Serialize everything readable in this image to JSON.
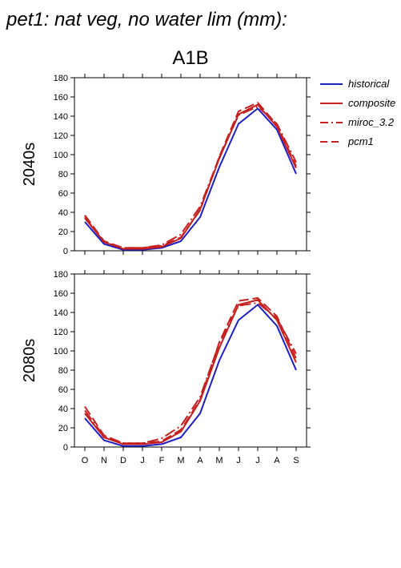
{
  "title": "pet1: nat veg, no water lim (mm):",
  "colors": {
    "historical": "#1f1fbf",
    "composite": "#c42020",
    "miroc_3.2": "#c42020",
    "pcm1": "#c42020"
  },
  "chart_data": [
    {
      "type": "line",
      "title": "A1B",
      "ylabel": "2040s",
      "categories": [
        "O",
        "N",
        "D",
        "J",
        "F",
        "M",
        "A",
        "M",
        "J",
        "J",
        "A",
        "S"
      ],
      "ylim": [
        0,
        180
      ],
      "yticks": [
        0,
        20,
        40,
        60,
        80,
        100,
        120,
        140,
        160,
        180
      ],
      "grid": false,
      "legend_position": "right",
      "series": [
        {
          "name": "historical",
          "style": "solid",
          "values": [
            30,
            7,
            1,
            1,
            3,
            10,
            35,
            87,
            132,
            148,
            126,
            80
          ]
        },
        {
          "name": "composite",
          "style": "solid",
          "values": [
            34,
            9,
            2,
            2,
            4,
            13,
            43,
            96,
            142,
            152,
            129,
            86
          ]
        },
        {
          "name": "miroc_3.2",
          "style": "dashdot",
          "values": [
            35,
            9,
            3,
            3,
            6,
            17,
            46,
            97,
            141,
            150,
            132,
            92
          ]
        },
        {
          "name": "pcm1",
          "style": "longdash",
          "values": [
            37,
            10,
            3,
            3,
            5,
            14,
            42,
            98,
            145,
            154,
            131,
            88
          ]
        }
      ]
    },
    {
      "type": "line",
      "title": "",
      "ylabel": "2080s",
      "categories": [
        "O",
        "N",
        "D",
        "J",
        "F",
        "M",
        "A",
        "M",
        "J",
        "J",
        "A",
        "S"
      ],
      "ylim": [
        0,
        180
      ],
      "yticks": [
        0,
        20,
        40,
        60,
        80,
        100,
        120,
        140,
        160,
        180
      ],
      "grid": false,
      "series": [
        {
          "name": "historical",
          "style": "solid",
          "values": [
            30,
            7,
            1,
            1,
            3,
            10,
            35,
            90,
            132,
            148,
            126,
            80
          ]
        },
        {
          "name": "composite",
          "style": "solid",
          "values": [
            35,
            10,
            3,
            3,
            5,
            16,
            48,
            103,
            148,
            153,
            132,
            88
          ]
        },
        {
          "name": "miroc_3.2",
          "style": "dashdot",
          "values": [
            38,
            11,
            4,
            4,
            9,
            22,
            52,
            108,
            147,
            150,
            134,
            97
          ]
        },
        {
          "name": "pcm1",
          "style": "longdash",
          "values": [
            42,
            12,
            4,
            4,
            6,
            18,
            49,
            109,
            152,
            155,
            136,
            92
          ]
        }
      ]
    }
  ]
}
